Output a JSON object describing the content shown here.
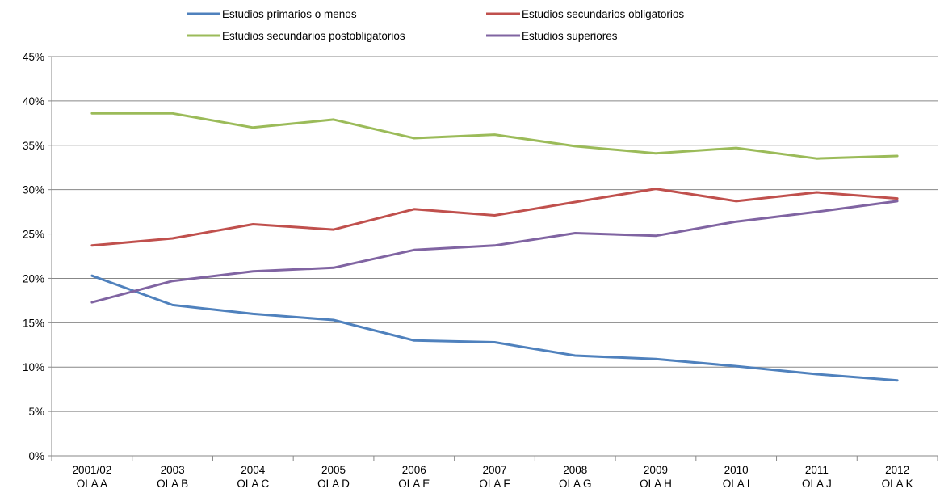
{
  "chart_data": {
    "type": "line",
    "categories": [
      [
        "2001/02",
        "OLA A"
      ],
      [
        "2003",
        "OLA B"
      ],
      [
        "2004",
        "OLA C"
      ],
      [
        "2005",
        "OLA D"
      ],
      [
        "2006",
        "OLA E"
      ],
      [
        "2007",
        "OLA F"
      ],
      [
        "2008",
        "OLA G"
      ],
      [
        "2009",
        "OLA H"
      ],
      [
        "2010",
        "OLA I"
      ],
      [
        "2011",
        "OLA J"
      ],
      [
        "2012",
        "OLA K"
      ]
    ],
    "y_ticks": [
      "0%",
      "5%",
      "10%",
      "15%",
      "20%",
      "25%",
      "30%",
      "35%",
      "40%",
      "45%"
    ],
    "ylim": [
      0,
      45
    ],
    "grid": true,
    "legend_position": "top",
    "series": [
      {
        "name": "Estudios primarios o menos",
        "color": "#4f81bd",
        "values": [
          20.3,
          17.0,
          16.0,
          15.3,
          13.0,
          12.8,
          11.3,
          10.9,
          10.1,
          9.2,
          8.5
        ]
      },
      {
        "name": "Estudios secundarios obligatorios",
        "color": "#c0504d",
        "values": [
          23.7,
          24.5,
          26.1,
          25.5,
          27.8,
          27.1,
          28.6,
          30.1,
          28.7,
          29.7,
          29.0
        ]
      },
      {
        "name": "Estudios secundarios postobligatorios",
        "color": "#9bbb59",
        "values": [
          38.6,
          38.6,
          37.0,
          37.9,
          35.8,
          36.2,
          34.9,
          34.1,
          34.7,
          33.5,
          33.8
        ]
      },
      {
        "name": "Estudios superiores",
        "color": "#8064a2",
        "values": [
          17.3,
          19.7,
          20.8,
          21.2,
          23.2,
          23.7,
          25.1,
          24.8,
          26.4,
          27.5,
          28.7
        ]
      }
    ]
  }
}
